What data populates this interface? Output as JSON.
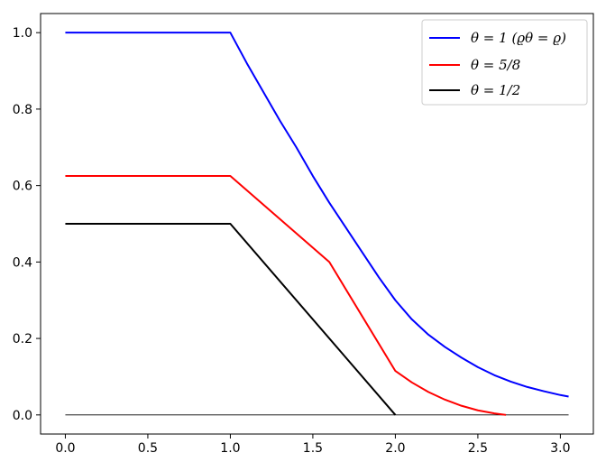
{
  "chart_data": {
    "type": "line",
    "title": "",
    "xlabel": "",
    "ylabel": "",
    "xlim": [
      -0.15,
      3.2
    ],
    "ylim": [
      -0.05,
      1.05
    ],
    "x_ticks": [
      0.0,
      0.5,
      1.0,
      1.5,
      2.0,
      2.5,
      3.0
    ],
    "y_ticks": [
      0.0,
      0.2,
      0.4,
      0.6,
      0.8,
      1.0
    ],
    "x_tick_labels": [
      "0.0",
      "0.5",
      "1.0",
      "1.5",
      "2.0",
      "2.5",
      "3.0"
    ],
    "y_tick_labels": [
      "0.0",
      "0.2",
      "0.4",
      "0.6",
      "0.8",
      "1.0"
    ],
    "grid": false,
    "legend_position": "top-right",
    "series": [
      {
        "name": "θ = 1   (ϱθ = ϱ)",
        "color": "#0000ff",
        "x": [
          0.0,
          1.0,
          1.1,
          1.2,
          1.3,
          1.4,
          1.5,
          1.6,
          1.7,
          1.8,
          1.9,
          2.0,
          2.1,
          2.2,
          2.3,
          2.4,
          2.5,
          2.6,
          2.7,
          2.8,
          2.9,
          3.0,
          3.05
        ],
        "y": [
          1.0,
          1.0,
          0.92,
          0.845,
          0.77,
          0.7,
          0.625,
          0.555,
          0.49,
          0.425,
          0.36,
          0.3,
          0.25,
          0.21,
          0.178,
          0.15,
          0.125,
          0.104,
          0.087,
          0.073,
          0.062,
          0.052,
          0.048
        ]
      },
      {
        "name": "θ = 5/8",
        "color": "#ff0000",
        "x": [
          0.0,
          1.0,
          1.6,
          2.0,
          2.1,
          2.2,
          2.3,
          2.4,
          2.5,
          2.6,
          2.67
        ],
        "y": [
          0.625,
          0.625,
          0.4,
          0.115,
          0.085,
          0.06,
          0.04,
          0.024,
          0.012,
          0.004,
          0.0
        ]
      },
      {
        "name": "θ = 1/2",
        "color": "#000000",
        "x": [
          0.0,
          1.0,
          2.0
        ],
        "y": [
          0.5,
          0.5,
          0.0
        ]
      }
    ],
    "reference_line": {
      "y": 0.0,
      "x_range": [
        0.0,
        3.05
      ],
      "color": "#000000"
    }
  }
}
